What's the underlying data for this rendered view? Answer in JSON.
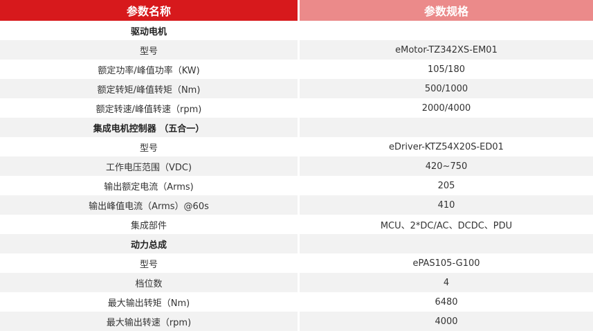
{
  "header": {
    "name": "参数名称",
    "spec": "参数规格"
  },
  "rows": [
    {
      "name": "驱动电机",
      "value": "",
      "section": true
    },
    {
      "name": "型号",
      "value": "eMotor-TZ342XS-EM01"
    },
    {
      "name": "额定功率/峰值功率（KW)",
      "value": "105/180"
    },
    {
      "name": "额定转矩/峰值转矩（Nm)",
      "value": "500/1000"
    },
    {
      "name": "额定转速/峰值转速（rpm)",
      "value": "2000/4000"
    },
    {
      "name": "集成电机控制器 （五合一）",
      "value": "",
      "section": true
    },
    {
      "name": "型号",
      "value": "eDriver-KTZ54X20S-ED01"
    },
    {
      "name": "工作电压范围（VDC)",
      "value": "420~750"
    },
    {
      "name": "输出额定电流（Arms)",
      "value": "205"
    },
    {
      "name": "输出峰值电流（Arms）@60s",
      "value": "410"
    },
    {
      "name": "集成部件",
      "value": "MCU、2*DC/AC、DCDC、PDU"
    },
    {
      "name": "动力总成",
      "value": "",
      "section": true
    },
    {
      "name": "型号",
      "value": "ePAS105-G100"
    },
    {
      "name": "档位数",
      "value": "4"
    },
    {
      "name": "最大输出转矩（Nm)",
      "value": "6480"
    },
    {
      "name": "最大输出转速（rpm)",
      "value": "4000"
    }
  ]
}
